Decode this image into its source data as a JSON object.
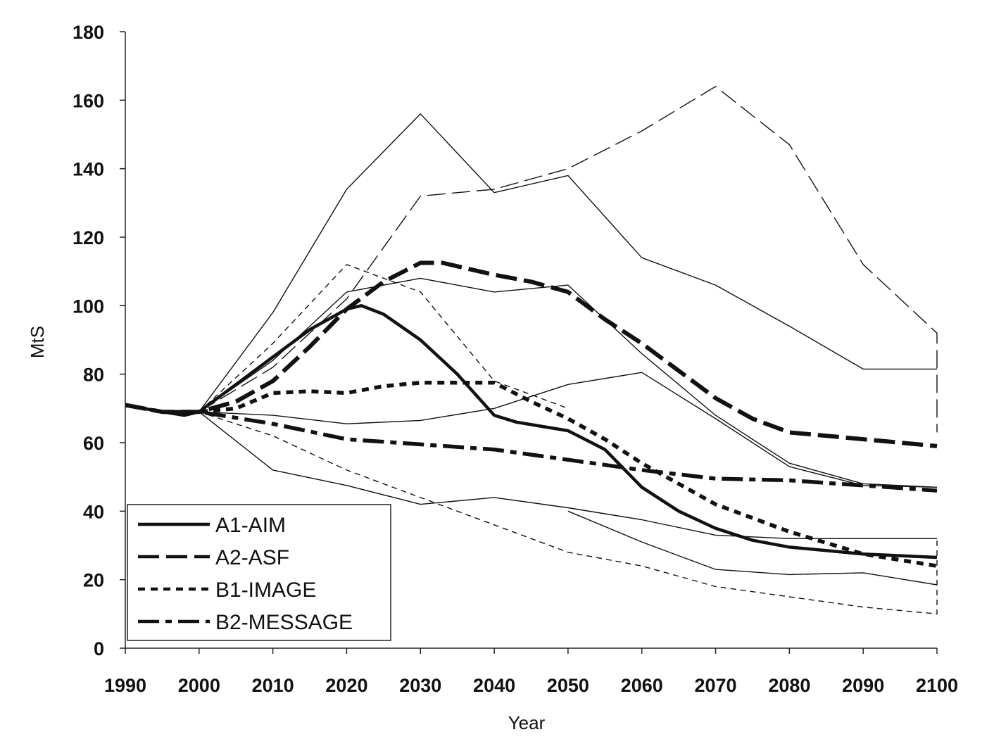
{
  "chart_data": {
    "type": "line",
    "title": "",
    "xlabel": "Year",
    "ylabel": "MtS",
    "xlim": [
      1990,
      2100
    ],
    "ylim": [
      0,
      180
    ],
    "xticks": [
      1990,
      2000,
      2010,
      2020,
      2030,
      2040,
      2050,
      2060,
      2070,
      2080,
      2090,
      2100
    ],
    "yticks": [
      0,
      20,
      40,
      60,
      80,
      100,
      120,
      140,
      160,
      180
    ],
    "grid": false,
    "legend_position": "bottom-left",
    "series": [
      {
        "name": "A1-AIM",
        "style": "solid",
        "weight": "bold",
        "points": [
          [
            1990,
            71
          ],
          [
            1995,
            69
          ],
          [
            1998,
            68
          ],
          [
            2000,
            69
          ],
          [
            2005,
            77
          ],
          [
            2010,
            85
          ],
          [
            2015,
            93
          ],
          [
            2020,
            99
          ],
          [
            2022,
            100
          ],
          [
            2025,
            97.5
          ],
          [
            2030,
            90
          ],
          [
            2035,
            80
          ],
          [
            2040,
            68
          ],
          [
            2043,
            66
          ],
          [
            2050,
            63.5
          ],
          [
            2055,
            58
          ],
          [
            2060,
            47
          ],
          [
            2065,
            40
          ],
          [
            2070,
            35
          ],
          [
            2075,
            31.5
          ],
          [
            2080,
            29.5
          ],
          [
            2090,
            27.5
          ],
          [
            2100,
            26.5
          ]
        ]
      },
      {
        "name": "A2-ASF",
        "style": "longdash",
        "weight": "bold",
        "points": [
          [
            1990,
            71
          ],
          [
            1995,
            69
          ],
          [
            2000,
            69
          ],
          [
            2005,
            72
          ],
          [
            2010,
            78
          ],
          [
            2015,
            88
          ],
          [
            2020,
            99
          ],
          [
            2025,
            107
          ],
          [
            2030,
            112.5
          ],
          [
            2033,
            112.5
          ],
          [
            2040,
            109
          ],
          [
            2045,
            107
          ],
          [
            2050,
            104
          ],
          [
            2055,
            96
          ],
          [
            2060,
            89
          ],
          [
            2065,
            81
          ],
          [
            2070,
            73
          ],
          [
            2075,
            67
          ],
          [
            2080,
            63
          ],
          [
            2090,
            61
          ],
          [
            2100,
            59
          ]
        ]
      },
      {
        "name": "B1-IMAGE",
        "style": "shortdash",
        "weight": "bold",
        "points": [
          [
            1990,
            71
          ],
          [
            1995,
            69
          ],
          [
            2000,
            69
          ],
          [
            2005,
            70
          ],
          [
            2010,
            74.5
          ],
          [
            2015,
            75
          ],
          [
            2020,
            74.5
          ],
          [
            2025,
            76.5
          ],
          [
            2030,
            77.5
          ],
          [
            2040,
            77.5
          ],
          [
            2045,
            72
          ],
          [
            2050,
            67
          ],
          [
            2055,
            61
          ],
          [
            2060,
            54
          ],
          [
            2065,
            48
          ],
          [
            2070,
            42
          ],
          [
            2080,
            34
          ],
          [
            2090,
            27.5
          ],
          [
            2100,
            24
          ]
        ]
      },
      {
        "name": "B2-MESSAGE",
        "style": "dashdot",
        "weight": "bold",
        "points": [
          [
            1990,
            71
          ],
          [
            1995,
            69
          ],
          [
            2000,
            69
          ],
          [
            2010,
            65.5
          ],
          [
            2020,
            61
          ],
          [
            2030,
            59.5
          ],
          [
            2040,
            58
          ],
          [
            2050,
            55
          ],
          [
            2060,
            52
          ],
          [
            2070,
            49.5
          ],
          [
            2080,
            49
          ],
          [
            2090,
            47.5
          ],
          [
            2100,
            46
          ]
        ]
      },
      {
        "name": "",
        "style": "solid",
        "weight": "thin",
        "points": [
          [
            2000,
            69
          ],
          [
            2010,
            98
          ],
          [
            2020,
            134
          ],
          [
            2030,
            156
          ],
          [
            2040,
            133
          ],
          [
            2050,
            138
          ],
          [
            2060,
            114
          ],
          [
            2070,
            106
          ],
          [
            2080,
            94
          ],
          [
            2090,
            81.5
          ],
          [
            2100,
            81.5
          ]
        ]
      },
      {
        "name": "",
        "style": "solid",
        "weight": "thin",
        "points": [
          [
            2000,
            69
          ],
          [
            2010,
            52
          ],
          [
            2020,
            47.5
          ],
          [
            2030,
            42
          ],
          [
            2040,
            44
          ],
          [
            2050,
            41
          ],
          [
            2060,
            37.5
          ],
          [
            2070,
            33
          ],
          [
            2080,
            32
          ],
          [
            2090,
            32
          ],
          [
            2100,
            32
          ]
        ]
      },
      {
        "name": "",
        "style": "solid",
        "weight": "thin",
        "points": [
          [
            2000,
            69
          ],
          [
            2010,
            68
          ],
          [
            2020,
            65.5
          ],
          [
            2030,
            66.5
          ],
          [
            2040,
            70
          ],
          [
            2050,
            77
          ],
          [
            2060,
            80.5
          ],
          [
            2070,
            67
          ],
          [
            2080,
            53
          ],
          [
            2090,
            47.5
          ],
          [
            2100,
            47
          ]
        ]
      },
      {
        "name": "",
        "style": "solid",
        "weight": "thin",
        "points": [
          [
            2050,
            40
          ],
          [
            2060,
            31
          ],
          [
            2070,
            23
          ],
          [
            2080,
            21.5
          ],
          [
            2090,
            22
          ],
          [
            2100,
            18.5
          ]
        ]
      },
      {
        "name": "",
        "style": "solid",
        "weight": "thin",
        "points": [
          [
            2000,
            69
          ],
          [
            2010,
            84
          ],
          [
            2020,
            104
          ],
          [
            2030,
            108
          ],
          [
            2040,
            104
          ],
          [
            2050,
            106
          ],
          [
            2060,
            86
          ],
          [
            2070,
            68
          ],
          [
            2080,
            54
          ],
          [
            2090,
            48
          ],
          [
            2100,
            47
          ]
        ]
      },
      {
        "name": "",
        "style": "longdash",
        "weight": "thin",
        "points": [
          [
            2000,
            69
          ],
          [
            2010,
            82
          ],
          [
            2020,
            102
          ],
          [
            2030,
            132
          ],
          [
            2040,
            134
          ],
          [
            2050,
            140
          ],
          [
            2060,
            151
          ],
          [
            2070,
            164
          ],
          [
            2080,
            147
          ],
          [
            2090,
            112
          ],
          [
            2100,
            92
          ],
          [
            2100,
            63
          ]
        ]
      },
      {
        "name": "",
        "style": "shortdash",
        "weight": "thin",
        "points": [
          [
            2000,
            69
          ],
          [
            2010,
            89
          ],
          [
            2020,
            112
          ],
          [
            2030,
            104
          ],
          [
            2040,
            78
          ],
          [
            2050,
            70
          ]
        ]
      },
      {
        "name": "",
        "style": "shortdash",
        "weight": "thin",
        "points": [
          [
            2000,
            69
          ],
          [
            2010,
            62
          ],
          [
            2020,
            52
          ],
          [
            2030,
            44
          ],
          [
            2040,
            36
          ],
          [
            2050,
            28
          ],
          [
            2060,
            24
          ],
          [
            2070,
            18
          ],
          [
            2080,
            15
          ],
          [
            2090,
            12
          ],
          [
            2100,
            10
          ],
          [
            2100,
            32
          ]
        ]
      }
    ]
  }
}
